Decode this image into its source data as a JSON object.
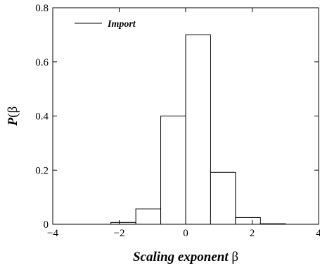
{
  "chart_data": {
    "type": "bar",
    "title": "",
    "xlabel": {
      "main": "Scaling exponent ",
      "greek": "β"
    },
    "ylabel": {
      "main": "P",
      "paren_open": "(",
      "greek": "β",
      "paren_close": ")"
    },
    "xlim": [
      -4,
      4
    ],
    "ylim": [
      0,
      0.8
    ],
    "xticks": [
      -4,
      -2,
      0,
      2,
      4
    ],
    "yticks": [
      0,
      0.2,
      0.4,
      0.6,
      0.8
    ],
    "xtick_labels": [
      "−4",
      "−2",
      "0",
      "2",
      "4"
    ],
    "ytick_labels": [
      "0",
      "0.2",
      "0.4",
      "0.6",
      "0.8"
    ],
    "bin_width": 0.75,
    "legend": {
      "position": "top-left",
      "entries": [
        "Import"
      ]
    },
    "series": [
      {
        "name": "Import",
        "bins": [
          {
            "x0": -2.25,
            "x1": -1.5,
            "y": 0.007
          },
          {
            "x0": -1.5,
            "x1": -0.75,
            "y": 0.057
          },
          {
            "x0": -0.75,
            "x1": 0.0,
            "y": 0.4
          },
          {
            "x0": 0.0,
            "x1": 0.75,
            "y": 0.7
          },
          {
            "x0": 0.75,
            "x1": 1.5,
            "y": 0.192
          },
          {
            "x0": 1.5,
            "x1": 2.25,
            "y": 0.025
          },
          {
            "x0": 2.25,
            "x1": 3.0,
            "y": 0.002
          }
        ]
      }
    ]
  }
}
